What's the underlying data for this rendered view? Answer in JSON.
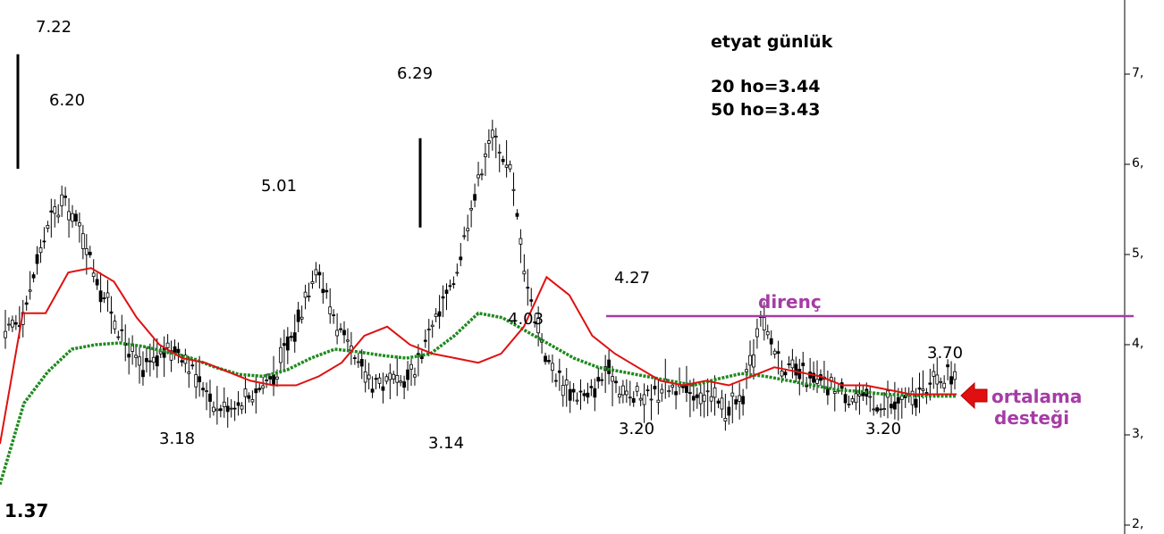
{
  "chart_data": {
    "type": "line",
    "title": "etyat günlük",
    "ma_info": [
      "20 ho=3.44",
      "50 ho=3.43"
    ],
    "ylim": [
      1.9,
      7.9
    ],
    "y_ticks": [
      {
        "value": 7,
        "label": "7,"
      },
      {
        "value": 6,
        "label": "6,"
      },
      {
        "value": 5,
        "label": "5,"
      },
      {
        "value": 4,
        "label": "4,"
      },
      {
        "value": 3,
        "label": "3,"
      },
      {
        "value": 2,
        "label": "2,"
      }
    ],
    "price_labels": [
      {
        "text": "7.22",
        "value": 7.22
      },
      {
        "text": "6.20",
        "value": 6.2
      },
      {
        "text": "5.01",
        "value": 5.01
      },
      {
        "text": "6.29",
        "value": 6.29
      },
      {
        "text": "4.27",
        "value": 4.27
      },
      {
        "text": "4.03",
        "value": 4.03
      },
      {
        "text": "3.70",
        "value": 3.7
      },
      {
        "text": "3.18",
        "value": 3.18
      },
      {
        "text": "3.14",
        "value": 3.14
      },
      {
        "text": "3.20",
        "value": 3.2
      },
      {
        "text": "3.20",
        "value": 3.2
      },
      {
        "text": "1.37",
        "value": 1.37
      }
    ],
    "resistance": {
      "label": "direnç",
      "value": 4.27
    },
    "support_label": [
      "ortalama",
      "desteği"
    ],
    "ma20_color": "#e01010",
    "ma50_color": "#1e8a1e",
    "resistance_color": "#a63ca6",
    "arrow_color": "#e01010",
    "ma20": [
      2.9,
      4.35,
      4.35,
      4.8,
      4.85,
      4.7,
      4.3,
      4.0,
      3.85,
      3.8,
      3.7,
      3.6,
      3.55,
      3.55,
      3.65,
      3.8,
      4.1,
      4.2,
      4.0,
      3.9,
      3.85,
      3.8,
      3.9,
      4.2,
      4.75,
      4.55,
      4.1,
      3.9,
      3.75,
      3.6,
      3.55,
      3.6,
      3.55,
      3.65,
      3.75,
      3.7,
      3.65,
      3.55,
      3.55,
      3.5,
      3.45,
      3.45,
      3.45
    ],
    "ma50": [
      2.45,
      3.35,
      3.7,
      3.95,
      4.0,
      4.02,
      3.98,
      3.92,
      3.85,
      3.75,
      3.67,
      3.65,
      3.72,
      3.85,
      3.95,
      3.92,
      3.88,
      3.85,
      3.9,
      4.1,
      4.35,
      4.3,
      4.15,
      4.0,
      3.85,
      3.75,
      3.7,
      3.65,
      3.6,
      3.55,
      3.62,
      3.68,
      3.65,
      3.6,
      3.55,
      3.5,
      3.48,
      3.45,
      3.44,
      3.43,
      3.43
    ],
    "price": [
      4.1,
      4.4,
      5.2,
      5.6,
      5.2,
      4.6,
      4.1,
      3.7,
      3.9,
      3.95,
      3.6,
      3.3,
      3.35,
      3.5,
      3.7,
      4.2,
      4.9,
      4.3,
      3.8,
      3.6,
      3.55,
      3.65,
      4.2,
      4.6,
      5.5,
      6.3,
      6.0,
      4.6,
      3.8,
      3.5,
      3.4,
      3.7,
      3.45,
      3.4,
      3.55,
      3.5,
      3.45,
      3.3,
      3.35,
      4.27,
      3.8,
      3.65,
      3.6,
      3.5,
      3.4,
      3.35,
      3.35,
      3.4,
      3.6,
      3.7
    ]
  }
}
